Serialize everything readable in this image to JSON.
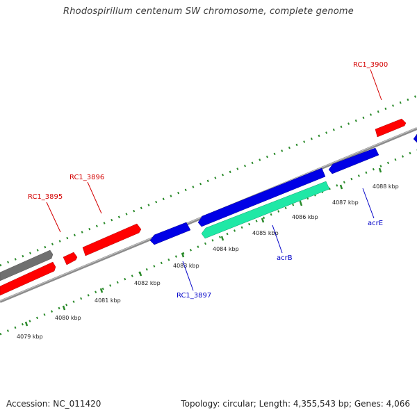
{
  "title": "Rhodospirillum centenum SW chromosome, complete genome",
  "footer": {
    "accession": "Accession: NC_011420",
    "stats": "Topology: circular; Length: 4,355,543 bp; Genes: 4,066"
  },
  "colors": {
    "forward_gene": "#ff0000",
    "reverse_gene": "#0000e6",
    "highlight_gene": "#1fe8a6",
    "other_gene": "#707070",
    "backbone": "#8c8c8c",
    "ruler": "#2a8a2a",
    "forward_label": "#d40000",
    "reverse_label": "#0000c8"
  },
  "scale_labels": [
    "4079 kbp",
    "4080 kbp",
    "4081 kbp",
    "4082 kbp",
    "4083 kbp",
    "4084 kbp",
    "4085 kbp",
    "4086 kbp",
    "4087 kbp",
    "4088 kbp"
  ],
  "gene_labels": {
    "rc1_3895": "RC1_3895",
    "rc1_3896": "RC1_3896",
    "rc1_3900": "RC1_3900",
    "rc1_3897": "RC1_3897",
    "acrB": "acrB",
    "acrE": "acrE"
  }
}
